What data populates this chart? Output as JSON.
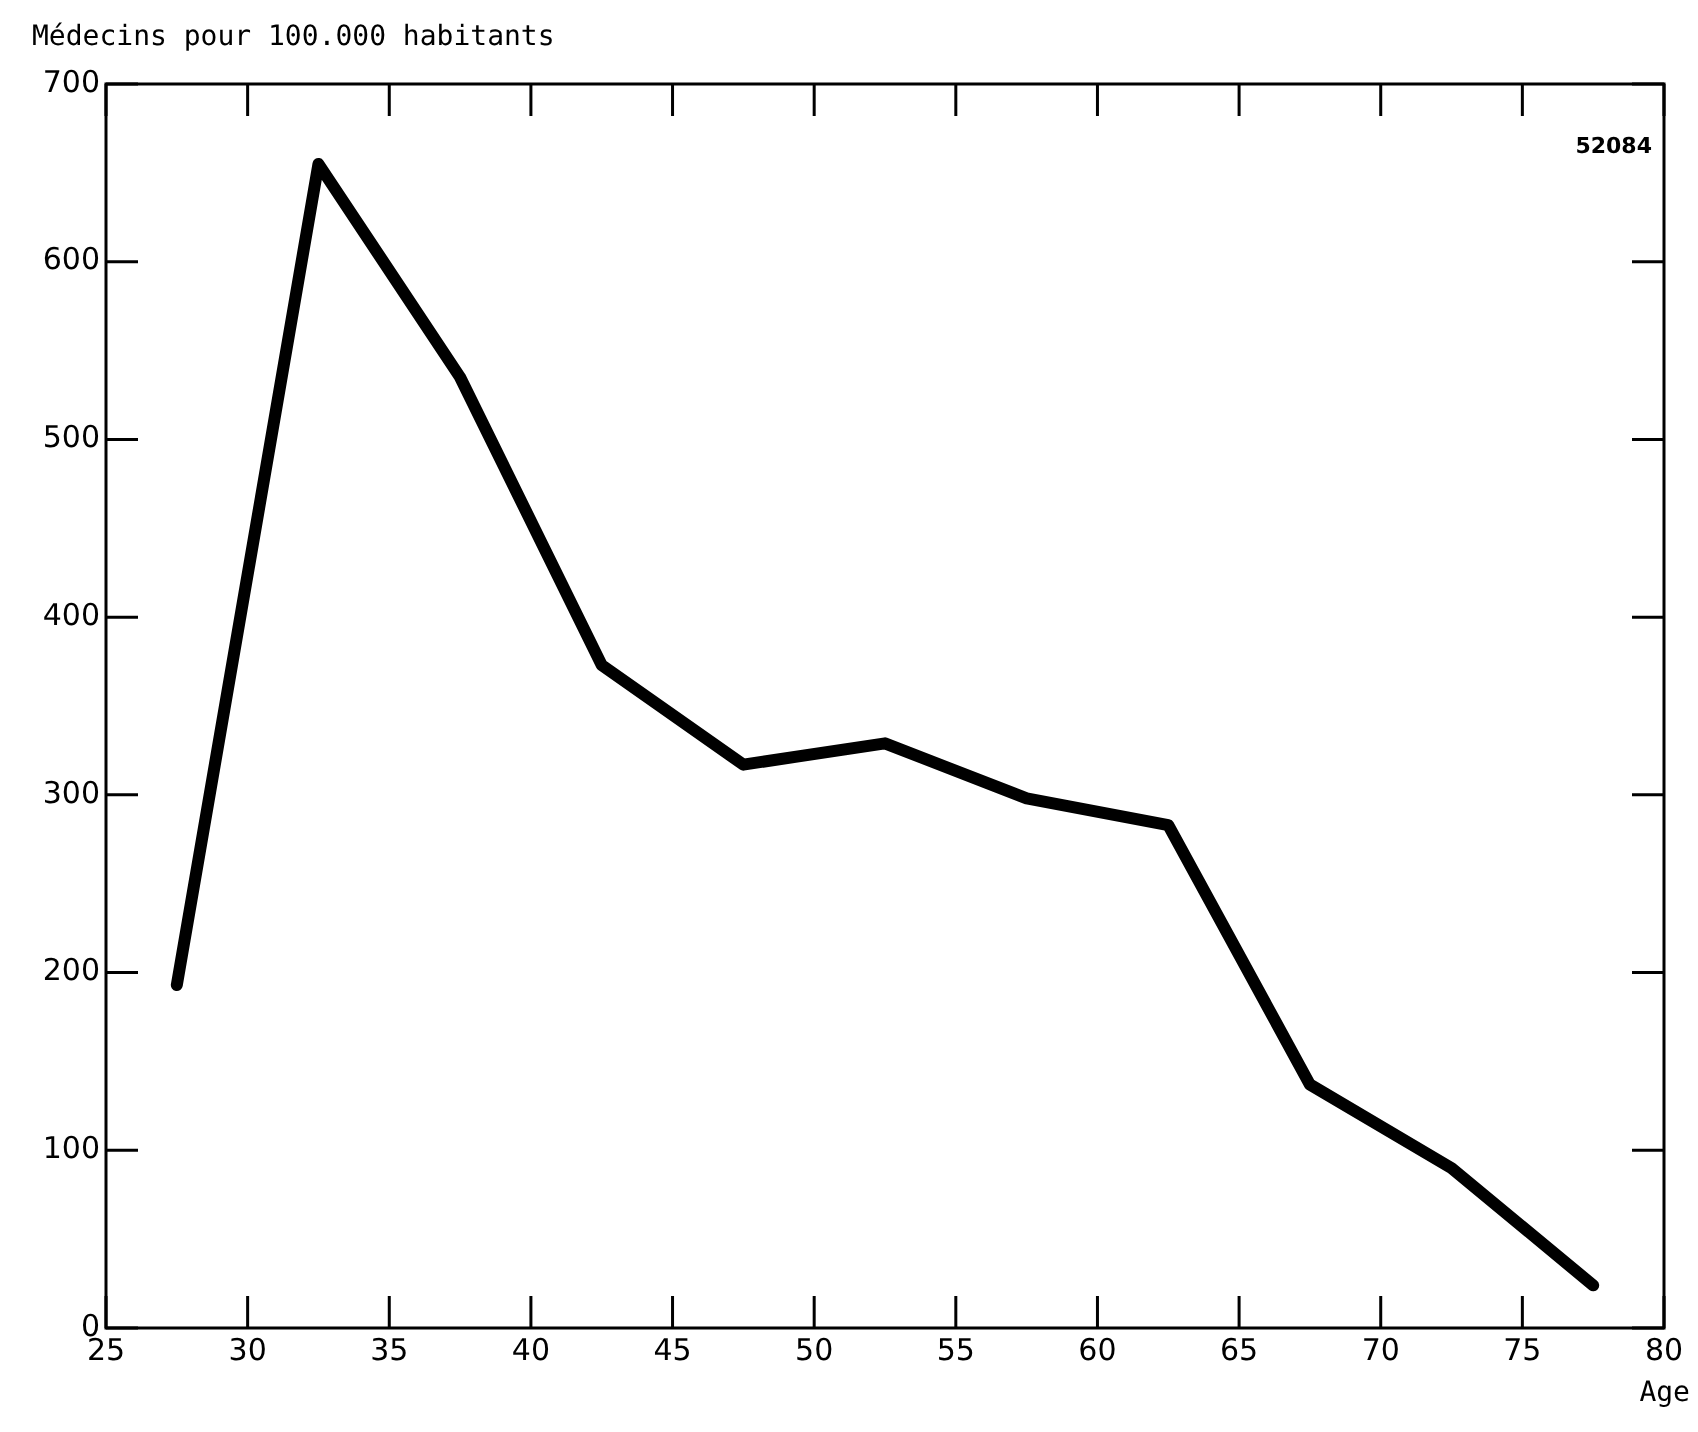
{
  "chart_data": {
    "type": "line",
    "ylabel": "Médecins pour 100.000 habitants",
    "xlabel": "Age",
    "annotations": [
      "52084"
    ],
    "x": [
      27.5,
      32.5,
      37.5,
      42.5,
      47.5,
      52.5,
      57.5,
      62.5,
      67.5,
      72.5,
      77.5
    ],
    "series": [
      {
        "color": "#000000",
        "values": [
          193,
          655,
          535,
          373,
          317,
          329,
          298,
          283,
          137,
          90,
          24
        ]
      }
    ],
    "xlim": [
      25,
      80
    ],
    "xticks": [
      25,
      30,
      35,
      40,
      45,
      50,
      55,
      60,
      65,
      70,
      75,
      80
    ],
    "ylim": [
      0,
      700
    ],
    "yticks": [
      0,
      100,
      200,
      300,
      400,
      500,
      600,
      700
    ],
    "legend": false,
    "marker": "none",
    "line_style": "solid"
  }
}
